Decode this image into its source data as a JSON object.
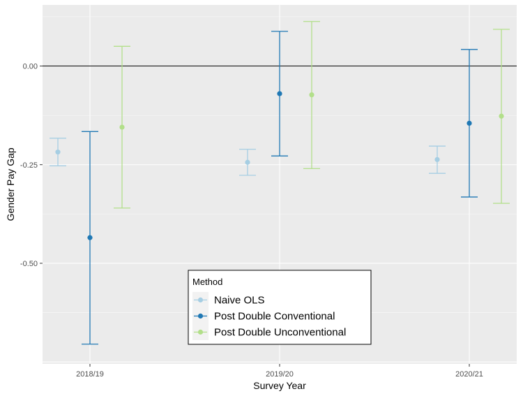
{
  "chart_data": {
    "type": "scatter",
    "subtype": "point-with-error-bars",
    "title": "",
    "xlabel": "Survey Year",
    "ylabel": "Gender Pay Gap",
    "categories": [
      "2018/19",
      "2019/20",
      "2020/21"
    ],
    "ylim": [
      -0.755,
      0.155
    ],
    "yticks": [
      0.0,
      -0.25,
      -0.5
    ],
    "ytick_labels": [
      "0.00",
      "-0.25",
      "-0.50"
    ],
    "reference_line": 0.0,
    "grid": true,
    "legend": {
      "title": "Method",
      "position": "bottom-center"
    },
    "series": [
      {
        "name": "Naive OLS",
        "color": "#a6cee3",
        "estimates": [
          -0.218,
          -0.244,
          -0.237
        ],
        "lower": [
          -0.253,
          -0.277,
          -0.272
        ],
        "upper": [
          -0.183,
          -0.211,
          -0.203
        ]
      },
      {
        "name": "Post Double Conventional",
        "color": "#1f78b4",
        "estimates": [
          -0.435,
          -0.07,
          -0.145
        ],
        "lower": [
          -0.705,
          -0.228,
          -0.332
        ],
        "upper": [
          -0.166,
          0.088,
          0.042
        ]
      },
      {
        "name": "Post Double Unconventional",
        "color": "#b2df8a",
        "estimates": [
          -0.155,
          -0.073,
          -0.127
        ],
        "lower": [
          -0.36,
          -0.26,
          -0.348
        ],
        "upper": [
          0.05,
          0.113,
          0.093
        ]
      }
    ]
  }
}
